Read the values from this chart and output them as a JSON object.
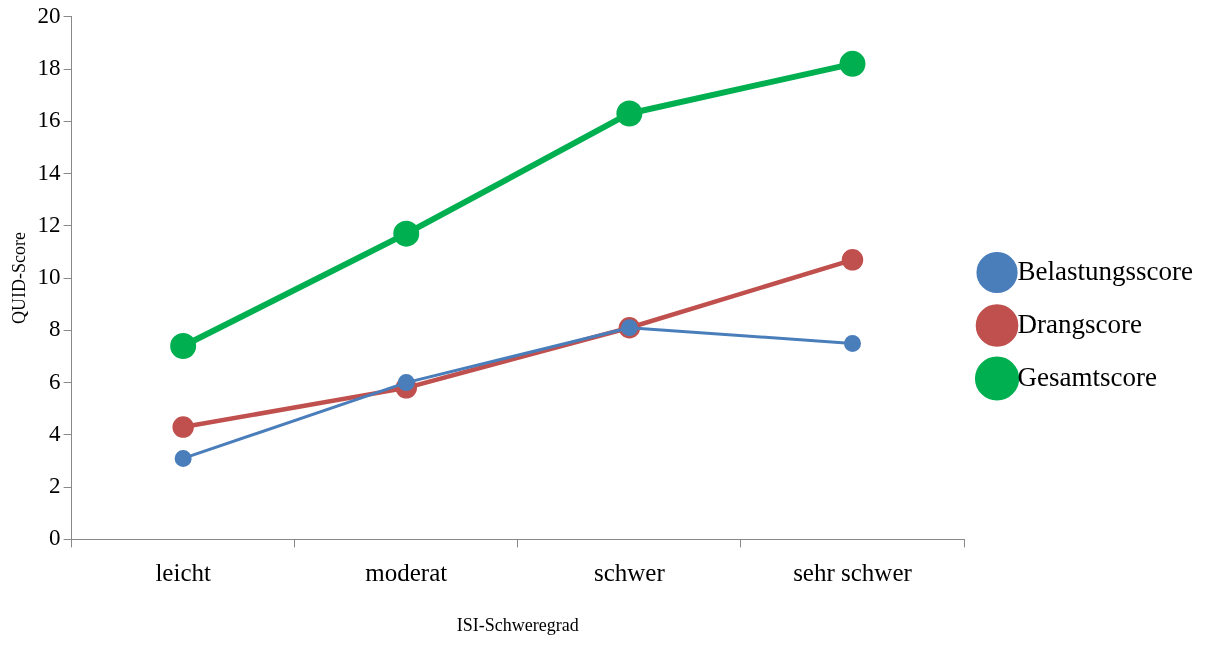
{
  "chart_data": {
    "type": "line",
    "xlabel": "ISI-Schweregrad",
    "ylabel": "QUID-Score",
    "categories": [
      "leicht",
      "moderat",
      "schwer",
      "sehr schwer"
    ],
    "ylim": [
      0,
      20
    ],
    "yticks": [
      0,
      2,
      4,
      6,
      8,
      10,
      12,
      14,
      16,
      18,
      20
    ],
    "grid": false,
    "legend": "right",
    "marker": "circle",
    "series": [
      {
        "name": "Belastungsscore",
        "color": "#4a7ebb",
        "values": [
          3.1,
          6.0,
          8.1,
          7.5
        ]
      },
      {
        "name": "Drangscore",
        "color": "#c0504d",
        "values": [
          4.3,
          5.8,
          8.1,
          10.7
        ]
      },
      {
        "name": "Gesamtscore",
        "color": "#00b050",
        "values": [
          7.4,
          11.7,
          16.3,
          18.2
        ]
      }
    ]
  }
}
